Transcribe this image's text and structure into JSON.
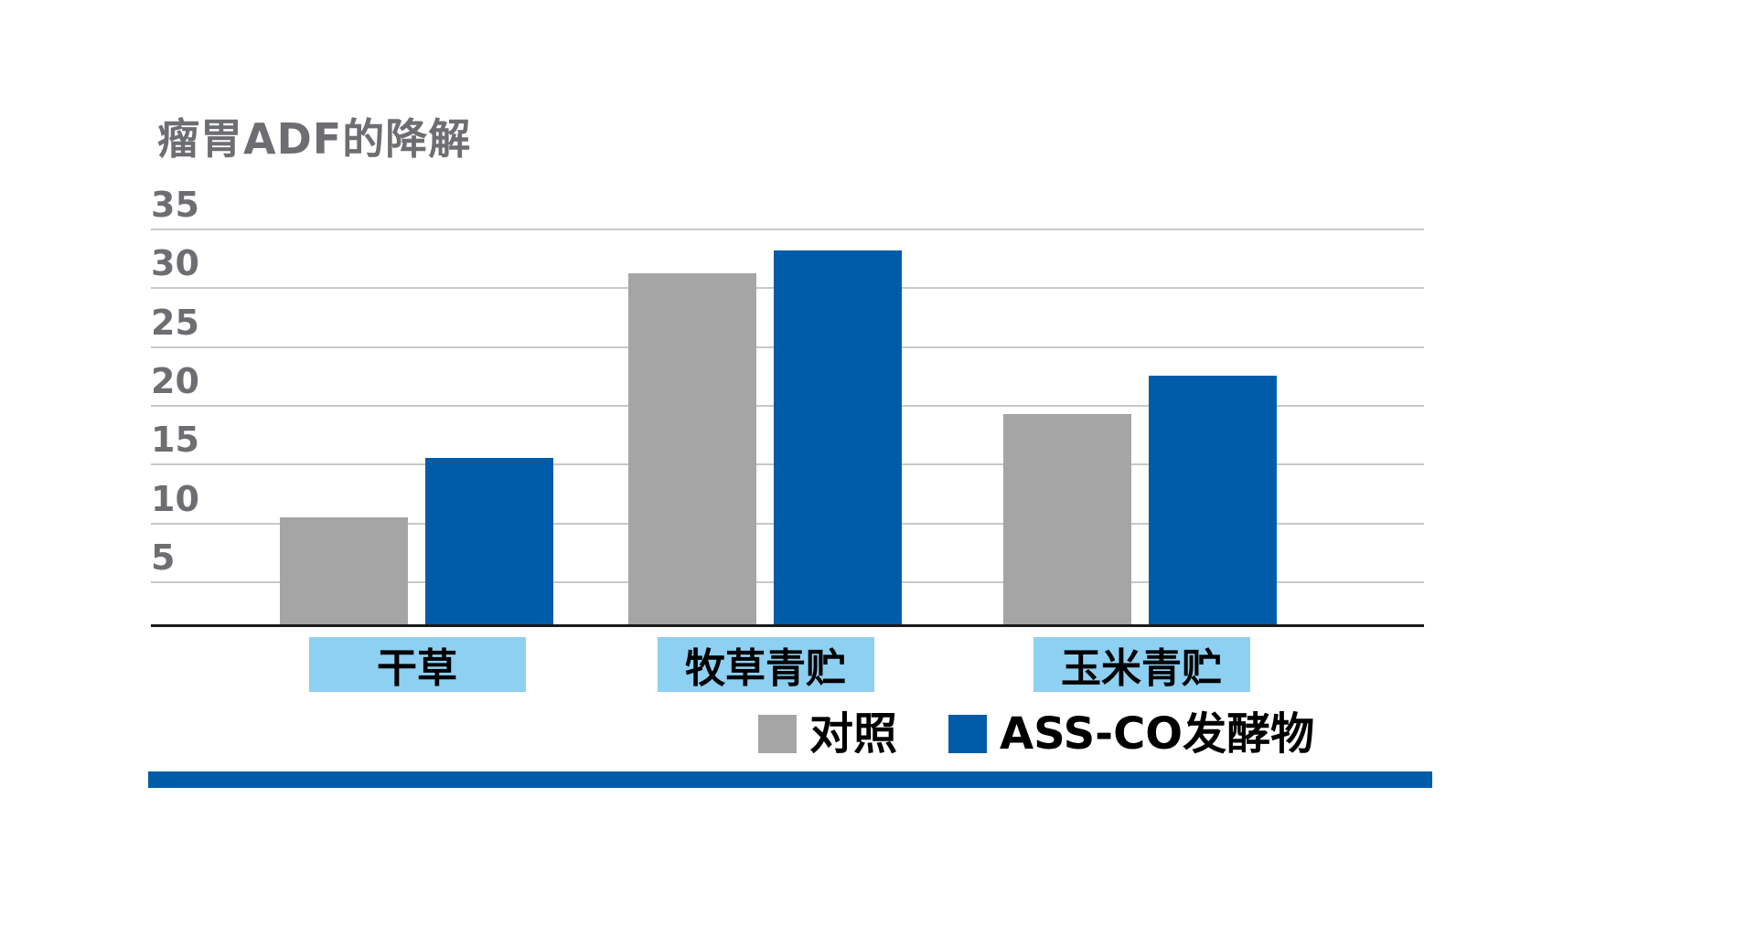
{
  "chart_data": {
    "type": "bar",
    "title": "瘤胃ADF的降解",
    "categories": [
      "干草",
      "牧草青贮",
      "玉米青贮"
    ],
    "series": [
      {
        "name": "对照",
        "color": "#A5A5A5",
        "values": [
          10.5,
          31.3,
          19.3
        ]
      },
      {
        "name": "ASS-CO发酵物",
        "color": "#005CA9",
        "values": [
          15.6,
          33.2,
          22.6
        ]
      }
    ],
    "xlabel": "",
    "ylabel": "",
    "ylim": [
      0,
      35
    ],
    "yticks": [
      35,
      30,
      25,
      20,
      15,
      10,
      5
    ],
    "grid": true,
    "legend_position": "bottom",
    "colors": {
      "background": "#FFFFFF",
      "title_text": "#6D6E71",
      "axis_text": "#6D6E71",
      "grid_line": "#C8C8C8",
      "axis_line": "#1A1A1A",
      "category_label_bg": "#8DD0F2",
      "category_label_text": "#000000",
      "accent_rule": "#005CA9"
    }
  }
}
